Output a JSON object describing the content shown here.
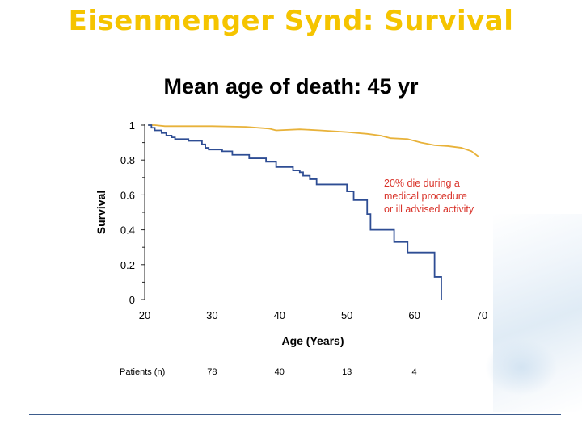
{
  "slide": {
    "title": "Eisenmenger Synd: Survival",
    "subtitle": "Mean age of death: 45 yr"
  },
  "chart_data": {
    "type": "line",
    "xlabel": "Age (Years)",
    "ylabel": "Survival",
    "xlim": [
      20,
      70
    ],
    "ylim": [
      0,
      1
    ],
    "x_ticks": [
      "20",
      "30",
      "40",
      "50",
      "60",
      "70"
    ],
    "y_ticks": [
      "0",
      "0.2",
      "0.4",
      "0.6",
      "0.8",
      "1"
    ],
    "grid": false,
    "series": [
      {
        "color": "#e8b23a",
        "step": false,
        "points": [
          [
            20.5,
            1.0
          ],
          [
            21.5,
            1.0
          ],
          [
            23,
            0.994
          ],
          [
            30,
            0.994
          ],
          [
            35,
            0.99
          ],
          [
            38.5,
            0.98
          ],
          [
            39.5,
            0.97
          ],
          [
            43,
            0.976
          ],
          [
            46,
            0.97
          ],
          [
            50,
            0.96
          ],
          [
            53,
            0.95
          ],
          [
            55,
            0.94
          ],
          [
            56.5,
            0.925
          ],
          [
            59,
            0.92
          ],
          [
            61,
            0.9
          ],
          [
            63,
            0.885
          ],
          [
            65,
            0.88
          ],
          [
            67,
            0.87
          ],
          [
            68.5,
            0.85
          ],
          [
            69.5,
            0.82
          ]
        ]
      },
      {
        "color": "#2e4d94",
        "step": true,
        "points": [
          [
            20.5,
            1.0
          ],
          [
            21,
            0.985
          ],
          [
            21.5,
            0.97
          ],
          [
            22.5,
            0.955
          ],
          [
            23.2,
            0.94
          ],
          [
            24,
            0.93
          ],
          [
            24.5,
            0.92
          ],
          [
            26.5,
            0.91
          ],
          [
            28.5,
            0.89
          ],
          [
            29,
            0.87
          ],
          [
            29.5,
            0.86
          ],
          [
            31.5,
            0.85
          ],
          [
            33,
            0.83
          ],
          [
            35.5,
            0.81
          ],
          [
            38,
            0.79
          ],
          [
            39.5,
            0.76
          ],
          [
            42,
            0.74
          ],
          [
            43,
            0.73
          ],
          [
            43.5,
            0.71
          ],
          [
            44.5,
            0.69
          ],
          [
            45.5,
            0.66
          ],
          [
            50,
            0.62
          ],
          [
            51,
            0.57
          ],
          [
            53,
            0.49
          ],
          [
            53.5,
            0.4
          ],
          [
            57,
            0.33
          ],
          [
            59,
            0.27
          ],
          [
            63,
            0.13
          ],
          [
            64,
            0.0
          ]
        ]
      }
    ],
    "annotation": [
      "20% die during a",
      "medical procedure",
      "or ill advised activity"
    ],
    "patients_row": {
      "label": "Patients (n)",
      "x": [
        30,
        40,
        50,
        60
      ],
      "values": [
        "78",
        "40",
        "13",
        "4"
      ]
    }
  }
}
